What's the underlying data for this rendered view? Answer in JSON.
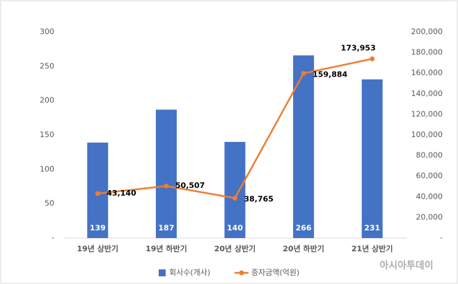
{
  "chart_data": {
    "type": "combo",
    "categories": [
      "19년 상반기",
      "19년 하반기",
      "20년 상반기",
      "20년 하반기",
      "21년 상반기"
    ],
    "series": [
      {
        "name": "회사수(개사)",
        "type": "bar",
        "color": "#4472c4",
        "values": [
          139,
          187,
          140,
          266,
          231
        ]
      },
      {
        "name": "증자금액(억원)",
        "type": "line",
        "axis": "y2",
        "color": "#ed7d31",
        "values": [
          43140,
          50507,
          38765,
          159884,
          173953
        ],
        "value_labels": [
          "43,140",
          "50,507",
          "38,765",
          "159,884",
          "173,953"
        ]
      }
    ],
    "ylim": [
      0,
      300
    ],
    "yticks": [
      {
        "value": 0,
        "label": "-"
      },
      50,
      100,
      150,
      200,
      250,
      300
    ],
    "y2lim": [
      0,
      200000
    ],
    "y2ticks": [
      {
        "value": 0,
        "label": "-"
      },
      {
        "value": 20000,
        "label": "20,000"
      },
      {
        "value": 40000,
        "label": "40,000"
      },
      {
        "value": 60000,
        "label": "60,000"
      },
      {
        "value": 80000,
        "label": "80,000"
      },
      {
        "value": 100000,
        "label": "100,000"
      },
      {
        "value": 120000,
        "label": "120,000"
      },
      {
        "value": 140000,
        "label": "140,000"
      },
      {
        "value": 160000,
        "label": "160,000"
      },
      {
        "value": 180000,
        "label": "180,000"
      },
      {
        "value": 200000,
        "label": "200,000"
      }
    ],
    "grid": false,
    "legend": "bottom",
    "watermark": "아시아투데이"
  }
}
